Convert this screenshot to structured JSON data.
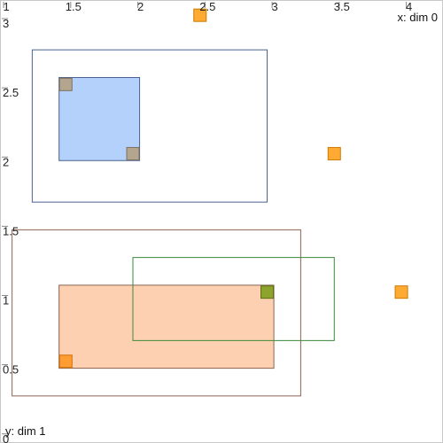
{
  "chart_data": {
    "type": "scatter",
    "xlabel": "x: dim 0",
    "ylabel": "y: dim 1",
    "xlim": [
      0.96,
      4.26
    ],
    "ylim": [
      -0.04,
      3.16
    ],
    "grid": false,
    "x_ticks": [
      {
        "value": 1,
        "label": "1"
      },
      {
        "value": 1.5,
        "label": "1.5"
      },
      {
        "value": 2,
        "label": "2"
      },
      {
        "value": 2.5,
        "label": "2.5"
      },
      {
        "value": 3,
        "label": "3"
      },
      {
        "value": 3.5,
        "label": "3.5"
      },
      {
        "value": 4,
        "label": "4"
      }
    ],
    "y_ticks": [
      {
        "value": 0,
        "label": "0"
      },
      {
        "value": 0.5,
        "label": "0.5"
      },
      {
        "value": 1,
        "label": "1"
      },
      {
        "value": 1.5,
        "label": "1.5"
      },
      {
        "value": 2,
        "label": "2"
      },
      {
        "value": 2.5,
        "label": "2.5"
      },
      {
        "value": 3,
        "label": "3"
      }
    ],
    "rects": [
      {
        "name": "outer-blue",
        "x0": 1.2,
        "x1": 2.95,
        "y0": 1.7,
        "y1": 2.8,
        "fill": "none",
        "stroke": "#4a6290"
      },
      {
        "name": "inner-blue",
        "x0": 1.4,
        "x1": 2.0,
        "y0": 2.0,
        "y1": 2.6,
        "fill": "#b3d1fb",
        "stroke": "#4a6290"
      },
      {
        "name": "outer-brown",
        "x0": 1.05,
        "x1": 3.2,
        "y0": 0.3,
        "y1": 1.5,
        "fill": "none",
        "stroke": "#8c6350"
      },
      {
        "name": "inner-orange",
        "x0": 1.4,
        "x1": 3.0,
        "y0": 0.5,
        "y1": 1.1,
        "fill": "#fdd0b2",
        "stroke": "#8c6350"
      },
      {
        "name": "green-box",
        "x0": 1.95,
        "x1": 3.45,
        "y0": 0.7,
        "y1": 1.3,
        "fill": "none",
        "stroke": "#3a8a3a"
      }
    ],
    "points": [
      {
        "x": 2.45,
        "y": 3.05,
        "fill": "#ffaa33",
        "stroke": "#cc7a00"
      },
      {
        "x": 1.45,
        "y": 2.55,
        "fill": "#b3a58e",
        "stroke": "#7d7060"
      },
      {
        "x": 1.95,
        "y": 2.05,
        "fill": "#b3a58e",
        "stroke": "#7d7060"
      },
      {
        "x": 3.45,
        "y": 2.05,
        "fill": "#ffaa33",
        "stroke": "#cc7a00"
      },
      {
        "x": 2.95,
        "y": 1.05,
        "fill": "#8ea32c",
        "stroke": "#5d6e12"
      },
      {
        "x": 3.95,
        "y": 1.05,
        "fill": "#ffaa33",
        "stroke": "#cc7a00"
      },
      {
        "x": 1.45,
        "y": 0.55,
        "fill": "#ff9d33",
        "stroke": "#cc6f00"
      }
    ]
  }
}
